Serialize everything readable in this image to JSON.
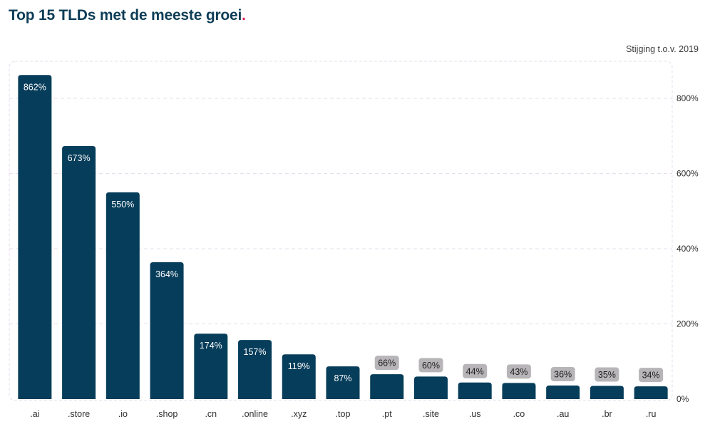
{
  "title": "Top 15 TLDs met de meeste groei",
  "title_dot": ".",
  "subtitle": "Stijging t.o.v. 2019",
  "colors": {
    "bar": "#063d5a",
    "bar_label_small_bg": "#b7b5b8",
    "text": "#2f2f2f",
    "grid": "#e7ddee"
  },
  "chart_data": {
    "type": "bar",
    "title": "Top 15 TLDs met de meeste groei",
    "ylabel": "Stijging t.o.v. 2019",
    "categories": [
      ".ai",
      ".store",
      ".io",
      ".shop",
      ".cn",
      ".online",
      ".xyz",
      ".top",
      ".pt",
      ".site",
      ".us",
      ".co",
      ".au",
      ".br",
      ".ru"
    ],
    "values": [
      862,
      673,
      550,
      364,
      174,
      157,
      119,
      87,
      66,
      60,
      44,
      43,
      36,
      35,
      34
    ],
    "value_labels": [
      "862%",
      "673%",
      "550%",
      "364%",
      "174%",
      "157%",
      "119%",
      "87%",
      "66%",
      "60%",
      "44%",
      "43%",
      "36%",
      "35%",
      "34%"
    ],
    "ylim": [
      0,
      880
    ],
    "yticks": [
      0,
      200,
      400,
      600,
      800
    ],
    "ytick_labels": [
      "0%",
      "200%",
      "400%",
      "600%",
      "800%"
    ],
    "y_axis_position": "right",
    "grid": true
  }
}
